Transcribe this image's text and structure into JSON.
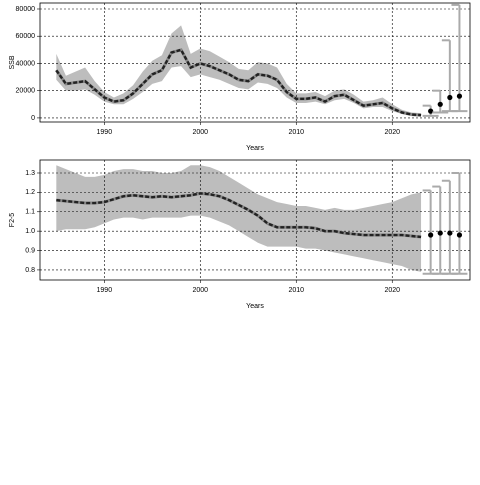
{
  "chart_data": [
    {
      "type": "line",
      "ylabel": "SSB",
      "xlabel": "Years",
      "color": "#222222",
      "band_color": "#bdbdbd",
      "grid": true,
      "xlim": [
        1983.3,
        2028.1
      ],
      "xticks": [
        1990,
        2000,
        2010,
        2020
      ],
      "ylim": [
        -3000,
        84400
      ],
      "yticks": [
        0,
        20000,
        40000,
        60000,
        80000
      ],
      "x": [
        1985,
        1986,
        1987,
        1988,
        1989,
        1990,
        1991,
        1992,
        1993,
        1994,
        1995,
        1996,
        1997,
        1998,
        1999,
        2000,
        2001,
        2002,
        2003,
        2004,
        2005,
        2006,
        2007,
        2008,
        2009,
        2010,
        2011,
        2012,
        2013,
        2014,
        2015,
        2016,
        2017,
        2018,
        2019,
        2020,
        2021,
        2022,
        2023
      ],
      "values": [
        35000,
        25000,
        26000,
        27000,
        21000,
        15000,
        12000,
        13000,
        18000,
        25000,
        32000,
        35000,
        48000,
        50000,
        37000,
        40000,
        38000,
        35000,
        32000,
        28000,
        27000,
        32000,
        31000,
        28000,
        19000,
        14000,
        14000,
        15000,
        12000,
        16000,
        17000,
        13000,
        9000,
        10000,
        11000,
        7000,
        4000,
        2500,
        2000
      ],
      "lower": [
        28000,
        20000,
        20000,
        21000,
        17000,
        12000,
        10000,
        10000,
        14000,
        19000,
        25000,
        27000,
        37000,
        38000,
        30000,
        32000,
        30000,
        28000,
        25000,
        22000,
        21000,
        26000,
        25000,
        22000,
        15000,
        11000,
        11000,
        12000,
        10000,
        13000,
        14000,
        11000,
        7000,
        8000,
        8000,
        5000,
        3000,
        1800,
        1500
      ],
      "upper": [
        47000,
        31000,
        34000,
        37000,
        27000,
        19000,
        15000,
        18000,
        24000,
        34000,
        42000,
        46000,
        62000,
        68000,
        47000,
        51000,
        49000,
        45000,
        41000,
        36000,
        35000,
        41000,
        40000,
        37000,
        25000,
        18000,
        18000,
        19000,
        16000,
        20000,
        21000,
        17000,
        12000,
        13000,
        15000,
        10000,
        6000,
        4000,
        3500
      ],
      "projection": {
        "x": [
          2024,
          2025,
          2026,
          2027
        ],
        "values": [
          5000,
          10000,
          15000,
          16000
        ],
        "lower": [
          1500,
          4000,
          5000,
          5000
        ],
        "upper": [
          9000,
          20000,
          57000,
          83000
        ]
      }
    },
    {
      "type": "line",
      "ylabel": "F2-5",
      "xlabel": "Years",
      "color": "#222222",
      "band_color": "#bdbdbd",
      "grid": true,
      "xlim": [
        1983.3,
        2028.1
      ],
      "xticks": [
        1990,
        2000,
        2010,
        2020
      ],
      "ylim": [
        0.748,
        1.367
      ],
      "yticks": [
        0.8,
        0.9,
        {
          "value": 1,
          "label": "1.0"
        },
        1.1,
        1.2,
        1.3
      ],
      "x": [
        1985,
        1986,
        1987,
        1988,
        1989,
        1990,
        1991,
        1992,
        1993,
        1994,
        1995,
        1996,
        1997,
        1998,
        1999,
        2000,
        2001,
        2002,
        2003,
        2004,
        2005,
        2006,
        2007,
        2008,
        2009,
        2010,
        2011,
        2012,
        2013,
        2014,
        2015,
        2016,
        2017,
        2018,
        2019,
        2020,
        2021,
        2022,
        2023
      ],
      "values": [
        1.16,
        1.155,
        1.15,
        1.145,
        1.145,
        1.15,
        1.165,
        1.18,
        1.185,
        1.18,
        1.175,
        1.18,
        1.175,
        1.18,
        1.185,
        1.195,
        1.19,
        1.18,
        1.16,
        1.135,
        1.11,
        1.08,
        1.04,
        1.02,
        1.02,
        1.02,
        1.02,
        1.015,
        1.0,
        1.0,
        0.99,
        0.985,
        0.98,
        0.98,
        0.98,
        0.98,
        0.98,
        0.975,
        0.97
      ],
      "lower": [
        1.0,
        1.01,
        1.01,
        1.01,
        1.02,
        1.04,
        1.06,
        1.07,
        1.07,
        1.06,
        1.07,
        1.07,
        1.07,
        1.07,
        1.08,
        1.08,
        1.07,
        1.05,
        1.03,
        1.0,
        0.97,
        0.94,
        0.92,
        0.92,
        0.92,
        0.92,
        0.91,
        0.91,
        0.9,
        0.89,
        0.88,
        0.87,
        0.86,
        0.85,
        0.84,
        0.83,
        0.82,
        0.8,
        0.79
      ],
      "upper": [
        1.34,
        1.32,
        1.3,
        1.28,
        1.28,
        1.29,
        1.31,
        1.32,
        1.32,
        1.31,
        1.31,
        1.3,
        1.3,
        1.31,
        1.34,
        1.34,
        1.33,
        1.31,
        1.28,
        1.25,
        1.22,
        1.19,
        1.17,
        1.15,
        1.14,
        1.13,
        1.13,
        1.12,
        1.11,
        1.12,
        1.11,
        1.11,
        1.12,
        1.13,
        1.14,
        1.15,
        1.17,
        1.19,
        1.2
      ],
      "projection": {
        "x": [
          2024,
          2025,
          2026,
          2027
        ],
        "values": [
          0.98,
          0.99,
          0.99,
          0.98
        ],
        "lower": [
          0.78,
          0.78,
          0.78,
          0.78
        ],
        "upper": [
          1.21,
          1.23,
          1.26,
          1.3
        ]
      }
    }
  ]
}
